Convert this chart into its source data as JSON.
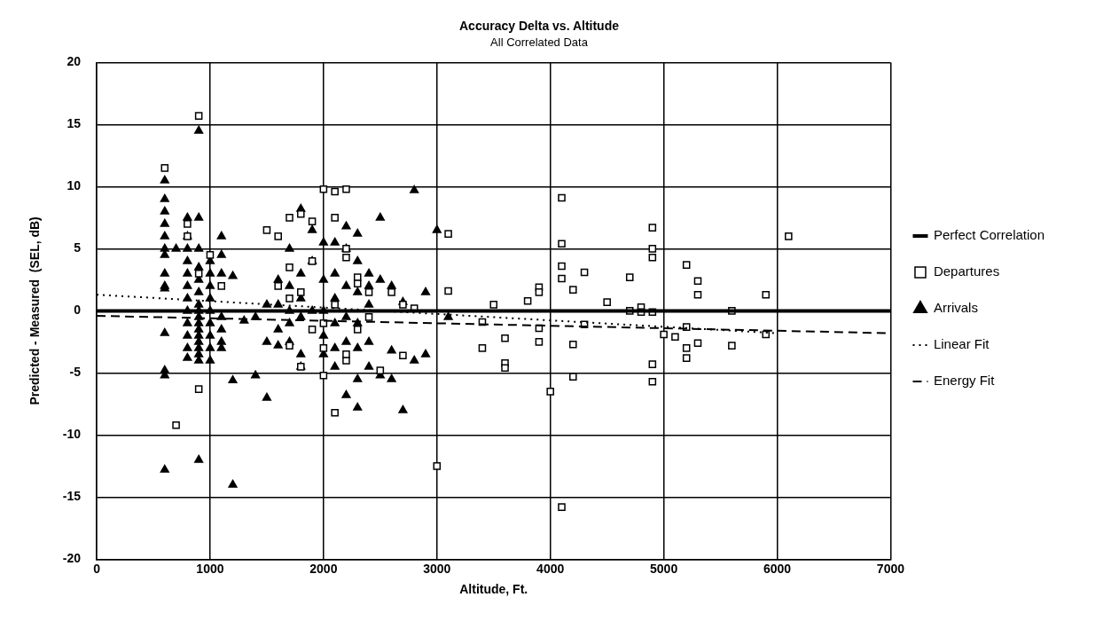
{
  "chart_data": {
    "type": "scatter",
    "title": "Accuracy Delta vs. Altitude",
    "subtitle": "All Correlated Data",
    "xlabel": "Altitude, Ft.",
    "ylabel": "Predicted - Measured  (SEL, dB)",
    "xlim": [
      0,
      7000
    ],
    "xticks": [
      0,
      1000,
      2000,
      3000,
      4000,
      5000,
      6000,
      7000
    ],
    "ylim": [
      -20,
      20
    ],
    "yticks": [
      -20,
      -15,
      -10,
      -5,
      0,
      5,
      10,
      15,
      20
    ],
    "grid": true,
    "legend": "right",
    "series": [
      {
        "name": "Perfect Correlation",
        "type": "line",
        "color": "#000000",
        "marker": "none",
        "line_style": "solid",
        "x": [
          0,
          7000
        ],
        "values": [
          0,
          0
        ]
      },
      {
        "name": "Departures",
        "type": "scatter",
        "color": "#000000",
        "marker": "square",
        "x": [
          600,
          700,
          800,
          800,
          900,
          900,
          900,
          1000,
          1100,
          1500,
          1600,
          1700,
          1700,
          1800,
          1800,
          1900,
          1900,
          2000,
          2100,
          2200,
          2000,
          2100,
          2100,
          2200,
          2200,
          2300,
          2300,
          2400,
          2500,
          2600,
          2700,
          2700,
          2800,
          3000,
          3100,
          3100,
          3400,
          3400,
          3500,
          3600,
          3600,
          3600,
          3800,
          3900,
          3900,
          3900,
          3900,
          4000,
          4100,
          4100,
          4100,
          4100,
          4100,
          4200,
          4200,
          4200,
          4300,
          4300,
          4500,
          4700,
          4700,
          4800,
          4800,
          4900,
          4900,
          4900,
          4900,
          4900,
          4900,
          5000,
          5100,
          5200,
          5200,
          5200,
          5200,
          5300,
          5300,
          5300,
          5600,
          5600,
          5900,
          5900,
          6100,
          1600,
          1700,
          1700,
          1800,
          1900,
          2000,
          2000,
          2100,
          2200,
          2200,
          2300,
          2400
        ],
        "values": [
          11.5,
          -9.2,
          6,
          7,
          15.7,
          -6.3,
          3,
          4.5,
          2,
          6.5,
          6,
          7.5,
          3.5,
          7.8,
          1.5,
          7.2,
          4,
          9.8,
          9.6,
          9.8,
          -5.2,
          -8.2,
          7.5,
          5,
          4.3,
          2.7,
          2.2,
          1.5,
          -4.8,
          1.5,
          0.5,
          -3.6,
          0.2,
          -12.5,
          6.2,
          1.6,
          -0.9,
          -3,
          0.5,
          -2.2,
          -4.2,
          -4.6,
          0.8,
          1.9,
          1.5,
          -1.4,
          -2.5,
          -6.5,
          9.1,
          5.4,
          3.6,
          2.6,
          -15.8,
          1.7,
          -2.7,
          -5.3,
          3.1,
          -1.1,
          0.7,
          2.7,
          0,
          0.3,
          -0.1,
          6.7,
          5,
          4.3,
          -0.1,
          -4.3,
          -5.7,
          -1.9,
          -2.1,
          3.7,
          -1.3,
          -3,
          -3.8,
          2.4,
          1.3,
          -2.6,
          0,
          -2.8,
          1.3,
          -1.9,
          6,
          2,
          1,
          -2.8,
          -4.5,
          -1.5,
          -1,
          -3,
          0.5,
          -4,
          -3.5,
          -1.5,
          -0.5
        ]
      },
      {
        "name": "Arrivals",
        "type": "scatter",
        "color": "#000000",
        "marker": "triangle",
        "x": [
          600,
          600,
          600,
          600,
          600,
          600,
          600,
          600,
          600,
          600,
          600,
          600,
          600,
          600,
          700,
          800,
          800,
          800,
          800,
          800,
          800,
          800,
          800,
          800,
          800,
          800,
          800,
          900,
          900,
          900,
          900,
          900,
          900,
          900,
          900,
          900,
          900,
          900,
          900,
          900,
          900,
          900,
          900,
          900,
          1000,
          1000,
          1000,
          1000,
          1000,
          1000,
          1000,
          1000,
          1000,
          1100,
          1100,
          1100,
          1100,
          1100,
          1100,
          1100,
          1200,
          1200,
          1200,
          1300,
          1400,
          1400,
          1500,
          1500,
          1500,
          1600,
          1600,
          1600,
          1600,
          1700,
          1700,
          1700,
          1700,
          1700,
          1800,
          1800,
          1800,
          1800,
          1800,
          1800,
          1900,
          1900,
          1900,
          2000,
          2000,
          2000,
          2000,
          2000,
          2100,
          2100,
          2100,
          2100,
          2100,
          2100,
          2200,
          2200,
          2200,
          2200,
          2200,
          2200,
          2300,
          2300,
          2300,
          2300,
          2300,
          2300,
          2300,
          2400,
          2400,
          2400,
          2400,
          2400,
          2500,
          2500,
          2500,
          2600,
          2600,
          2600,
          2700,
          2700,
          2800,
          2800,
          2900,
          2900,
          3000,
          3100
        ],
        "values": [
          10.5,
          9,
          8,
          7,
          6,
          5,
          4.5,
          3,
          2,
          1.8,
          -1.8,
          -4.8,
          -5.2,
          -12.8,
          5,
          7.5,
          6,
          5,
          4,
          3,
          2,
          1,
          0,
          -1,
          -2,
          -3,
          -3.8,
          14.5,
          7.5,
          5,
          3.5,
          2.5,
          1.5,
          0.5,
          0,
          -0.5,
          -1,
          -1.5,
          -2,
          -2.5,
          -3,
          -3.5,
          -4,
          -12,
          4,
          3,
          2,
          1,
          0,
          -1,
          -2,
          -3,
          -4,
          6,
          4.5,
          3,
          -0.5,
          -1.5,
          -2.5,
          -3,
          -5.6,
          -14,
          2.8,
          -0.8,
          -0.5,
          -5.2,
          -7,
          0.5,
          -2.5,
          2.5,
          0.5,
          -1.5,
          -2.8,
          5,
          2,
          0,
          -1,
          -2.5,
          8.2,
          3,
          1,
          -0.5,
          -3.5,
          -4.5,
          6.5,
          4,
          0,
          5.5,
          2.5,
          0,
          -2,
          -3.5,
          5.5,
          3,
          1,
          -1,
          -3,
          -4.5,
          6.8,
          5,
          2,
          -0.5,
          -2.5,
          -6.8,
          6.2,
          4,
          1.5,
          -1,
          -3,
          -5.5,
          -7.8,
          3,
          2,
          0.5,
          -2.5,
          -4.5,
          7.5,
          2.5,
          -5.2,
          2,
          -5.5,
          -3.2,
          -8,
          0.7,
          9.7,
          -4,
          1.5,
          -3.5,
          6.5,
          -0.5
        ]
      },
      {
        "name": "Linear Fit",
        "type": "line",
        "color": "#000000",
        "marker": "none",
        "line_style": "dotted",
        "x": [
          0,
          6000
        ],
        "values": [
          1.3,
          -1.8
        ]
      },
      {
        "name": "Energy Fit",
        "type": "line",
        "color": "#000000",
        "marker": "none",
        "line_style": "dashed",
        "x": [
          0,
          7000
        ],
        "values": [
          -0.4,
          -1.8
        ]
      }
    ]
  }
}
